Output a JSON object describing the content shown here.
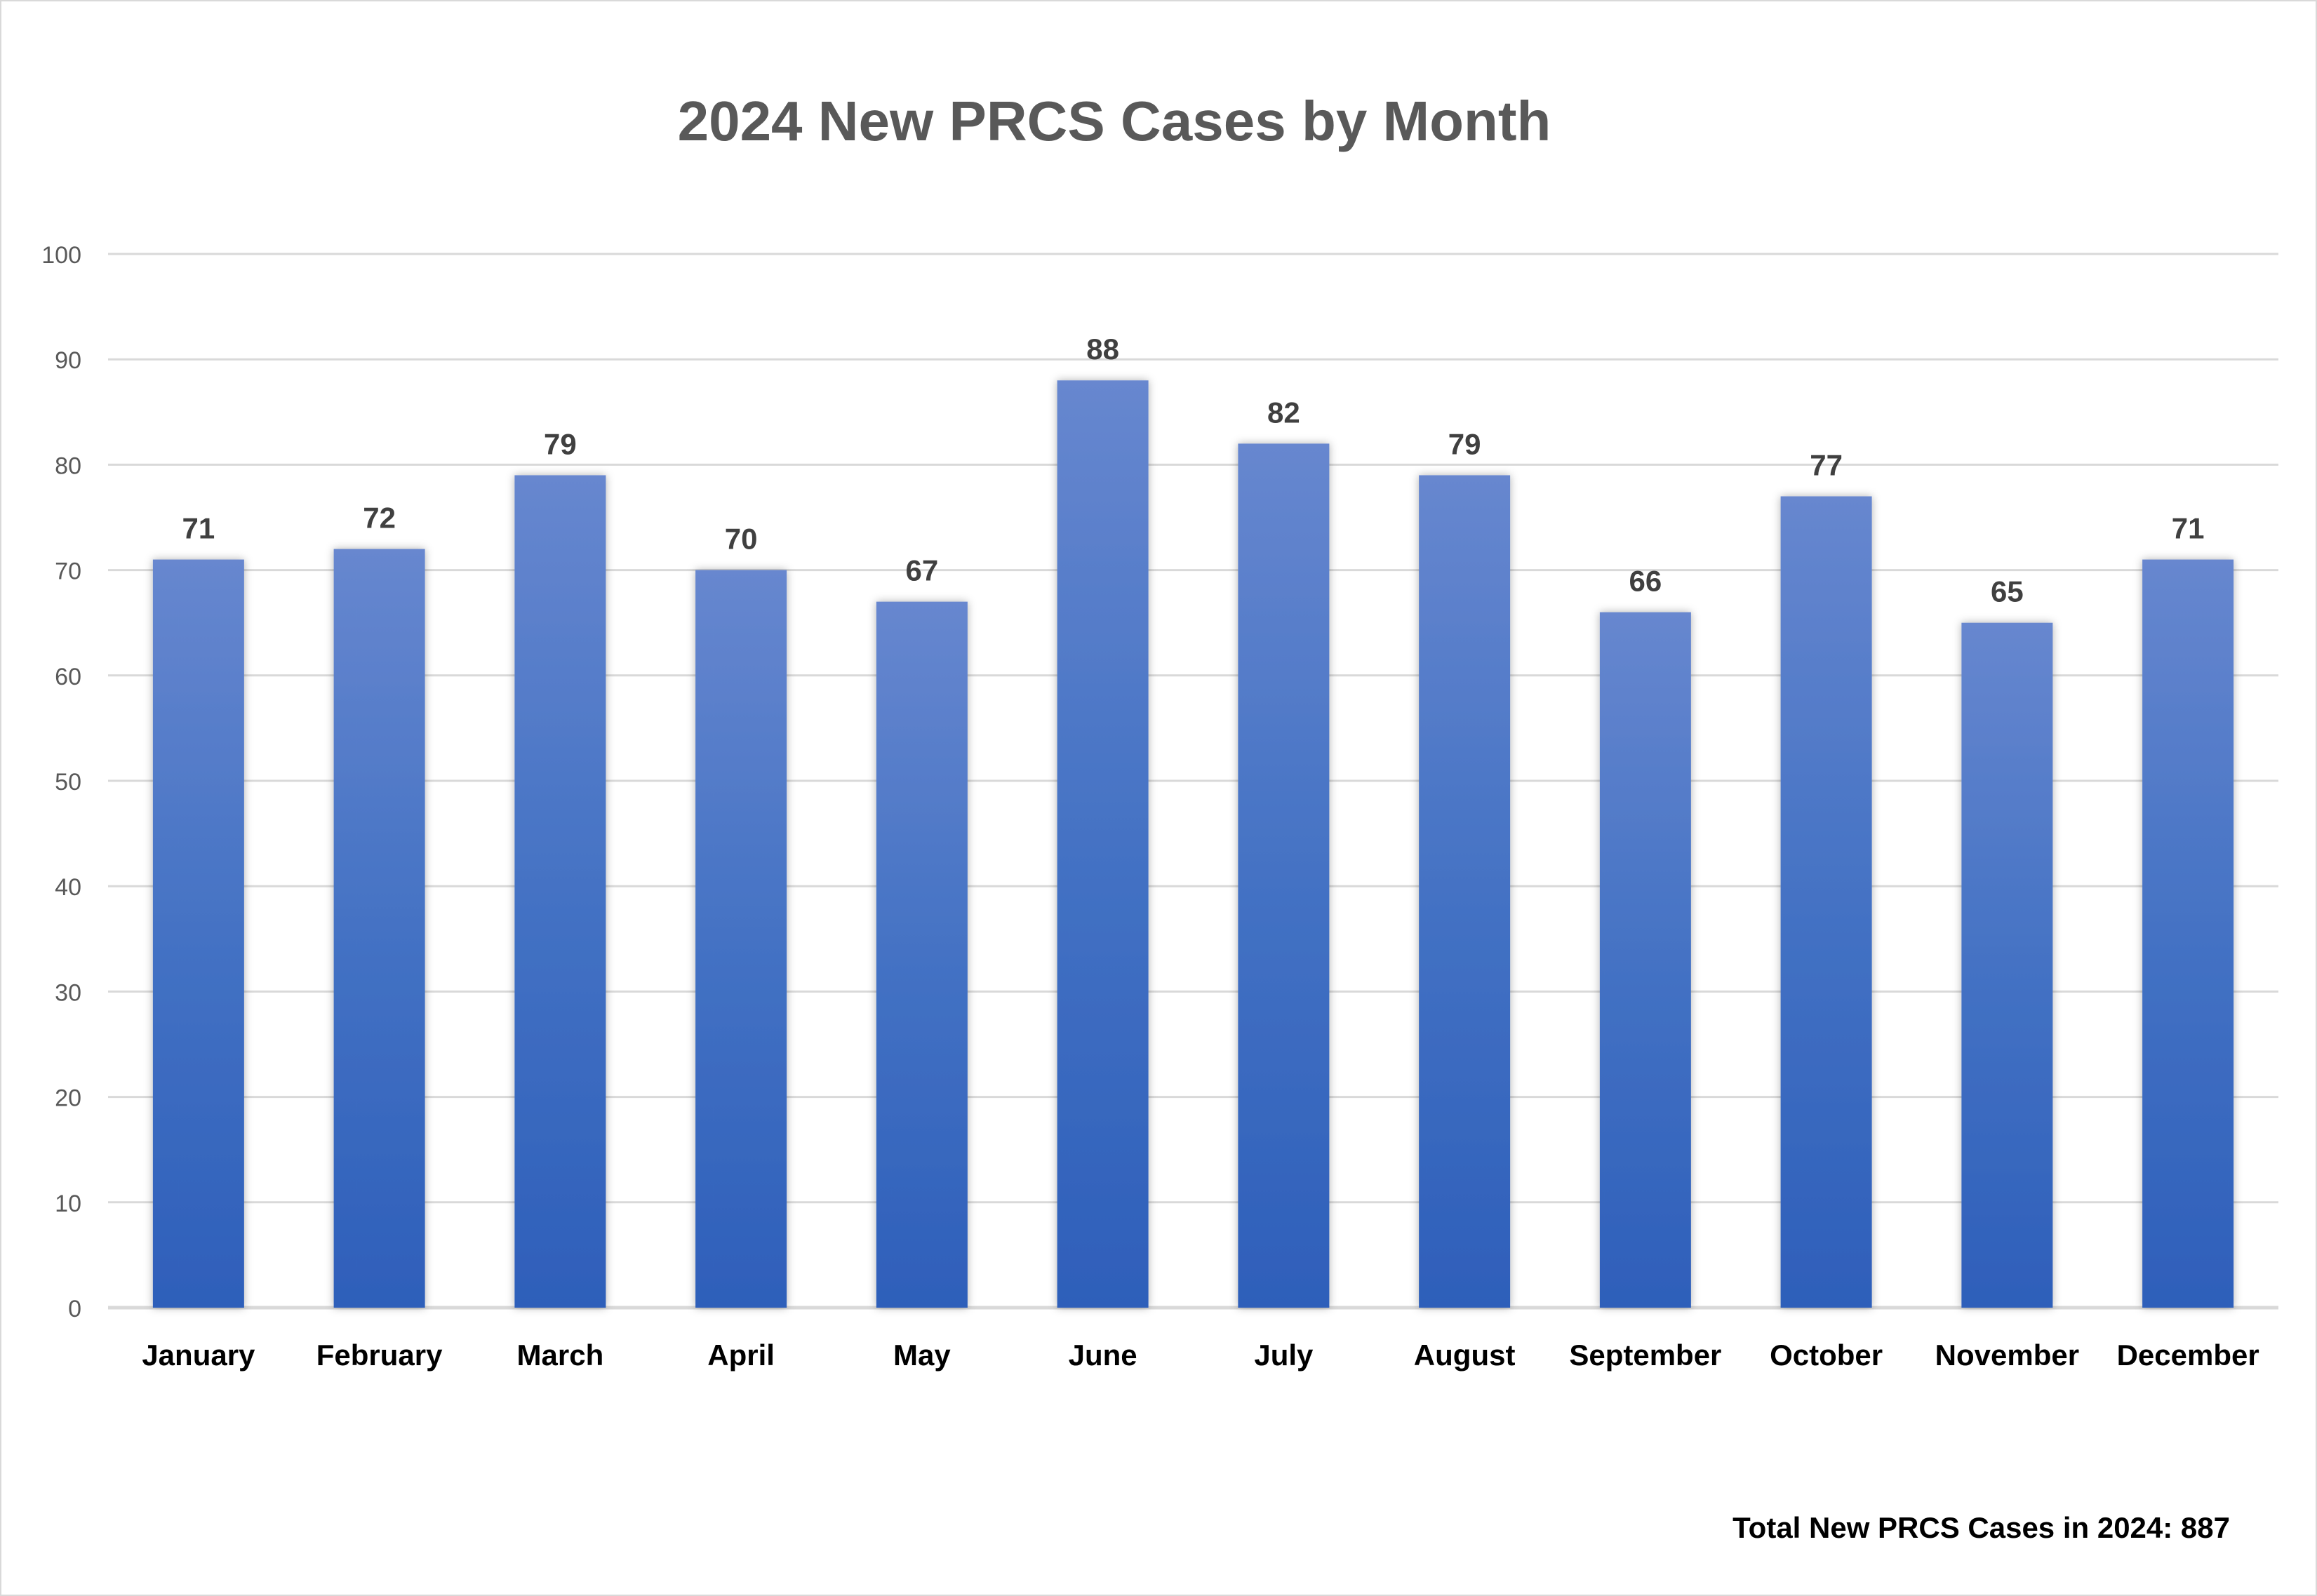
{
  "chart_data": {
    "type": "bar",
    "title": "2024 New PRCS Cases by Month",
    "xlabel": "",
    "ylabel": "",
    "categories": [
      "January",
      "February",
      "March",
      "April",
      "May",
      "June",
      "July",
      "August",
      "September",
      "October",
      "November",
      "December"
    ],
    "values": [
      71,
      72,
      79,
      70,
      67,
      88,
      82,
      79,
      66,
      77,
      65,
      71
    ],
    "ylim": [
      0,
      100
    ],
    "yticks": [
      0,
      10,
      20,
      30,
      40,
      50,
      60,
      70,
      80,
      90,
      100
    ],
    "grid": true,
    "data_labels": true,
    "legend": "none",
    "bar_color_top": "#6787cf",
    "bar_color_bottom": "#2e5fba",
    "annotation": "Total New PRCS Cases in 2024: 887"
  }
}
